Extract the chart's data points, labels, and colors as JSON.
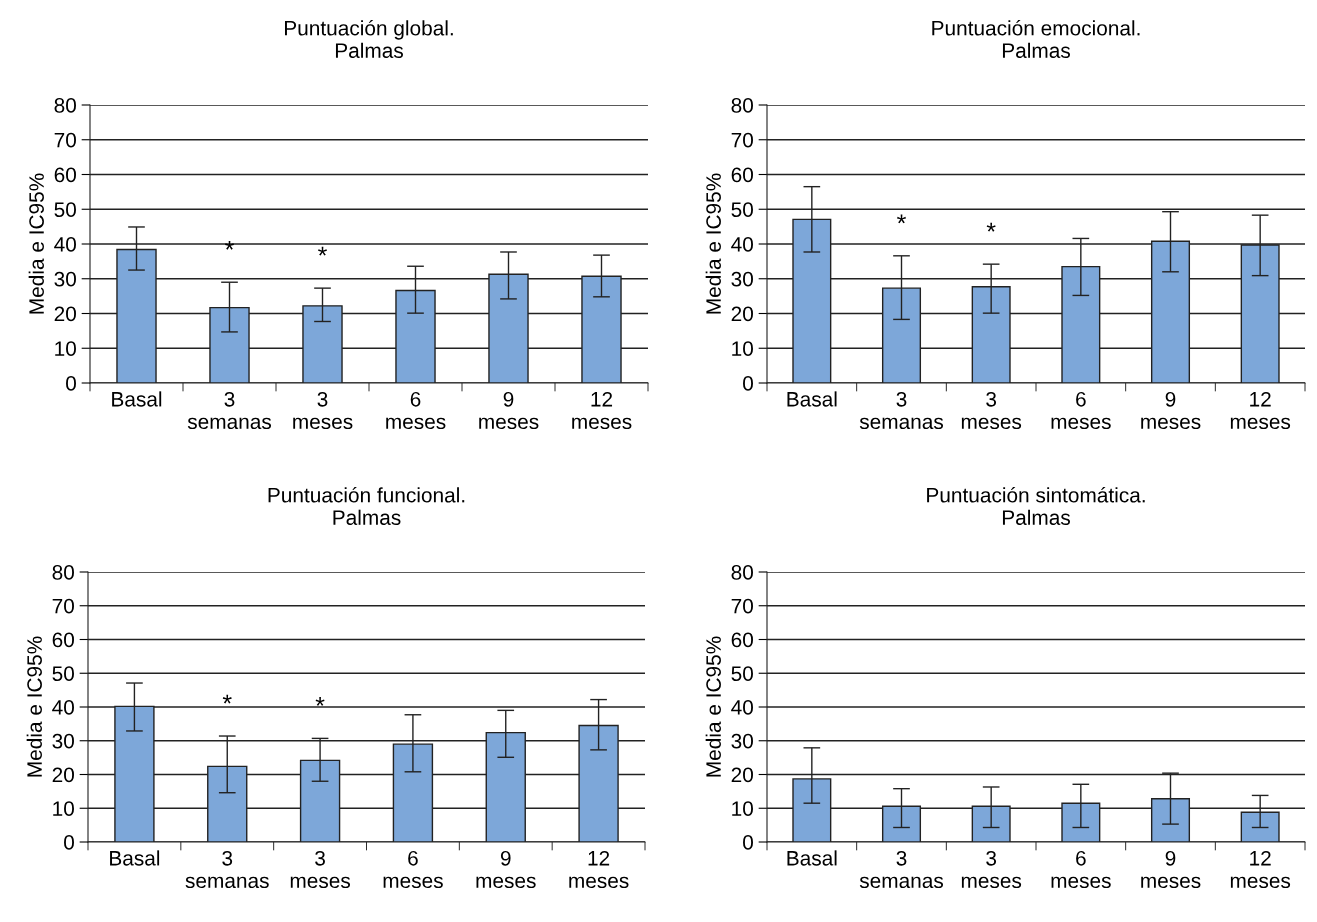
{
  "chart_data": [
    {
      "type": "bar",
      "title": "Puntuación global.\nPalmas",
      "ylabel": "Media e IC95%",
      "categories": [
        "Basal",
        "3\nsemanas",
        "3\nmeses",
        "6\nmeses",
        "9\nmeses",
        "12\nmeses"
      ],
      "color": "#7da7d9",
      "values": [
        38.4,
        21.7,
        22.2,
        26.6,
        31.3,
        30.7
      ],
      "errors": [
        [
          32.5,
          44.9
        ],
        [
          14.7,
          29.0
        ],
        [
          17.7,
          27.3
        ],
        [
          20.1,
          33.6
        ],
        [
          24.2,
          37.7
        ],
        [
          24.8,
          36.8
        ]
      ],
      "ylim": [
        0,
        80
      ],
      "yticks": [
        0,
        10,
        20,
        30,
        40,
        50,
        60,
        70,
        80
      ],
      "grid": "y",
      "legend": false,
      "annotations": [
        "*",
        "*"
      ]
    },
    {
      "type": "bar",
      "title": "Puntuación emocional.\nPalmas",
      "ylabel": "Media e IC95%",
      "categories": [
        "Basal",
        "3\nsemanas",
        "3\nmeses",
        "6\nmeses",
        "9\nmeses",
        "12\nmeses"
      ],
      "color": "#7da7d9",
      "values": [
        47.1,
        27.3,
        27.7,
        33.5,
        40.8,
        39.7
      ],
      "errors": [
        [
          37.7,
          56.5
        ],
        [
          18.3,
          36.6
        ],
        [
          20.1,
          34.2
        ],
        [
          25.2,
          41.6
        ],
        [
          32.0,
          49.3
        ],
        [
          30.9,
          48.3
        ]
      ],
      "ylim": [
        0,
        80
      ],
      "yticks": [
        0,
        10,
        20,
        30,
        40,
        50,
        60,
        70,
        80
      ],
      "grid": "y",
      "legend": false,
      "annotations": [
        "*",
        "*"
      ]
    },
    {
      "type": "bar",
      "title": "Puntuación funcional.\nPalmas",
      "ylabel": "Media e IC95%",
      "categories": [
        "Basal",
        "3\nsemanas",
        "3\nmeses",
        "6\nmeses",
        "9\nmeses",
        "12\nmeses"
      ],
      "color": "#7da7d9",
      "values": [
        40.2,
        22.4,
        24.2,
        29.0,
        32.4,
        34.5
      ],
      "errors": [
        [
          32.9,
          47.1
        ],
        [
          14.6,
          31.4
        ],
        [
          18.0,
          30.7
        ],
        [
          20.8,
          37.7
        ],
        [
          25.1,
          39.0
        ],
        [
          27.3,
          42.2
        ]
      ],
      "ylim": [
        0,
        80
      ],
      "yticks": [
        0,
        10,
        20,
        30,
        40,
        50,
        60,
        70,
        80
      ],
      "grid": "y",
      "legend": false,
      "annotations": [
        "*",
        "*"
      ]
    },
    {
      "type": "bar",
      "title": "Puntuación sintomática.\nPalmas",
      "ylabel": "Media e IC95%",
      "categories": [
        "Basal",
        "3\nsemanas",
        "3\nmeses",
        "6\nmeses",
        "9\nmeses",
        "12\nmeses"
      ],
      "color": "#7da7d9",
      "values": [
        18.7,
        10.6,
        10.6,
        11.5,
        12.8,
        8.8
      ],
      "errors": [
        [
          11.5,
          27.9
        ],
        [
          4.3,
          15.8
        ],
        [
          4.3,
          16.3
        ],
        [
          4.3,
          17.1
        ],
        [
          5.3,
          20.4
        ],
        [
          4.3,
          13.8
        ]
      ],
      "ylim": [
        0,
        80
      ],
      "yticks": [
        0,
        10,
        20,
        30,
        40,
        50,
        60,
        70,
        80
      ],
      "grid": "y",
      "legend": false
    }
  ]
}
